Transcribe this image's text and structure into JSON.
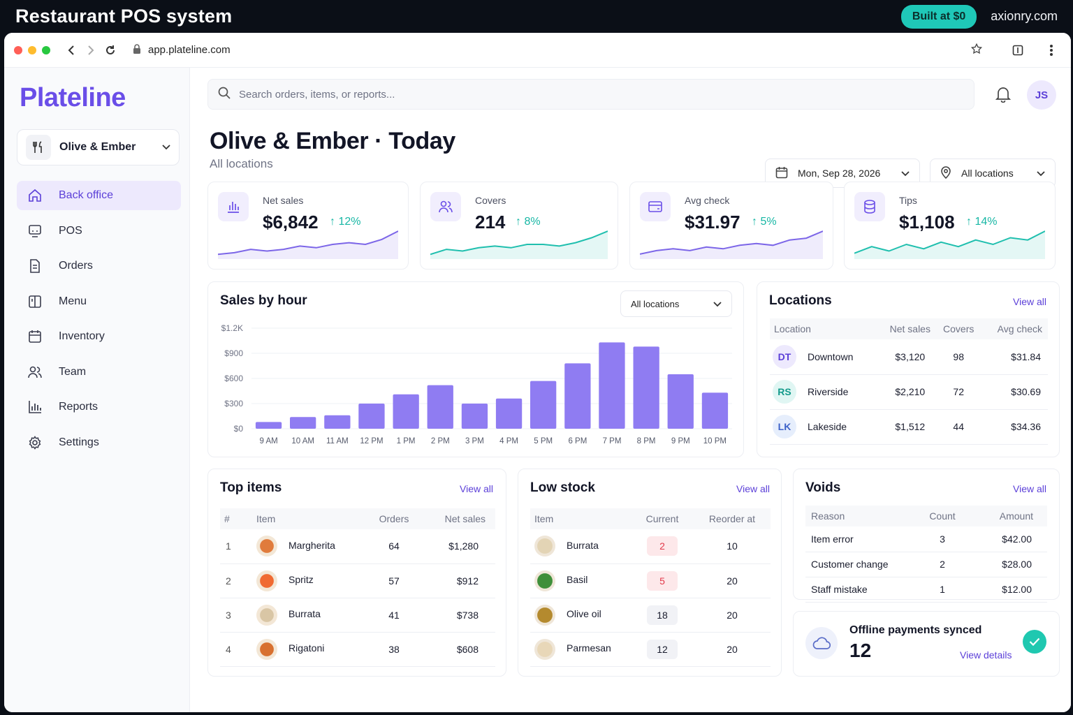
{
  "banner": {
    "title": "Restaurant POS system",
    "built": "Built at $0",
    "site": "axionry.com"
  },
  "browser": {
    "url": "app.plateline.com"
  },
  "sidebar": {
    "logo": "Plateline",
    "restaurant": "Olive & Ember",
    "items": [
      {
        "label": "Back office",
        "icon": "home-icon"
      },
      {
        "label": "POS",
        "icon": "pos-terminal-icon"
      },
      {
        "label": "Orders",
        "icon": "document-icon"
      },
      {
        "label": "Menu",
        "icon": "book-icon"
      },
      {
        "label": "Inventory",
        "icon": "calendar-box-icon"
      },
      {
        "label": "Team",
        "icon": "users-icon"
      },
      {
        "label": "Reports",
        "icon": "bar-chart-icon"
      },
      {
        "label": "Settings",
        "icon": "gear-icon"
      }
    ]
  },
  "header": {
    "search_placeholder": "Search orders, items, or reports...",
    "avatar": "JS",
    "title": "Olive & Ember · Today",
    "subtitle": "All locations",
    "date": "Mon, Sep 28, 2026",
    "location": "All locations"
  },
  "kpis": [
    {
      "label": "Net sales",
      "value": "$6,842",
      "change": "12%",
      "color": "#7c66e8",
      "spark": [
        6,
        7,
        9,
        8,
        9,
        11,
        10,
        12,
        13,
        12,
        15,
        20
      ]
    },
    {
      "label": "Covers",
      "value": "214",
      "change": "8%",
      "color": "#1fbfae",
      "spark": [
        5,
        8,
        7,
        9,
        10,
        9,
        11,
        11,
        10,
        12,
        15,
        19
      ]
    },
    {
      "label": "Avg check",
      "value": "$31.97",
      "change": "5%",
      "color": "#7c66e8",
      "spark": [
        6,
        8,
        9,
        8,
        10,
        9,
        11,
        12,
        11,
        14,
        15,
        19
      ]
    },
    {
      "label": "Tips",
      "value": "$1,108",
      "change": "14%",
      "color": "#1fbfae",
      "spark": [
        7,
        10,
        8,
        11,
        9,
        12,
        10,
        13,
        11,
        14,
        13,
        17
      ]
    }
  ],
  "sales": {
    "title": "Sales by hour",
    "filter": "All locations",
    "chart_data": {
      "type": "bar",
      "categories": [
        "9 AM",
        "10 AM",
        "11 AM",
        "12 PM",
        "1 PM",
        "2 PM",
        "3 PM",
        "4 PM",
        "5 PM",
        "6 PM",
        "7 PM",
        "8 PM",
        "9 PM",
        "10 PM"
      ],
      "values": [
        80,
        140,
        160,
        300,
        410,
        520,
        300,
        360,
        570,
        780,
        1030,
        980,
        650,
        430
      ],
      "ylim": [
        0,
        1200
      ],
      "yticks": [
        "$0",
        "$300",
        "$600",
        "$900",
        "$1.2K"
      ],
      "color": "#8f7cf2"
    }
  },
  "locations": {
    "title": "Locations",
    "view_all": "View all",
    "headers": [
      "Location",
      "Net sales",
      "Covers",
      "Avg check"
    ],
    "rows": [
      {
        "code": "DT",
        "name": "Downtown",
        "sales": "$3,120",
        "covers": "98",
        "avg": "$31.84",
        "bg": "#ede9fd",
        "fg": "#5b3fd8"
      },
      {
        "code": "RS",
        "name": "Riverside",
        "sales": "$2,210",
        "covers": "72",
        "avg": "$30.69",
        "bg": "#e0f6f3",
        "fg": "#139a8b"
      },
      {
        "code": "LK",
        "name": "Lakeside",
        "sales": "$1,512",
        "covers": "44",
        "avg": "$34.36",
        "bg": "#e6eefc",
        "fg": "#3e63c9"
      }
    ]
  },
  "top_items": {
    "title": "Top items",
    "view_all": "View all",
    "headers": [
      "#",
      "Item",
      "Orders",
      "Net sales"
    ],
    "rows": [
      {
        "n": "1",
        "name": "Margherita",
        "orders": "64",
        "sales": "$1,280",
        "color": "#e07b3c"
      },
      {
        "n": "2",
        "name": "Spritz",
        "orders": "57",
        "sales": "$912",
        "color": "#f06a32"
      },
      {
        "n": "3",
        "name": "Burrata",
        "orders": "41",
        "sales": "$738",
        "color": "#d9c6a5"
      },
      {
        "n": "4",
        "name": "Rigatoni",
        "orders": "38",
        "sales": "$608",
        "color": "#d8702f"
      }
    ]
  },
  "low_stock": {
    "title": "Low stock",
    "view_all": "View all",
    "headers": [
      "Item",
      "Current",
      "Reorder at"
    ],
    "rows": [
      {
        "name": "Burrata",
        "current": "2",
        "reorder": "10",
        "low": true,
        "color": "#e3d4b5"
      },
      {
        "name": "Basil",
        "current": "5",
        "reorder": "20",
        "low": true,
        "color": "#3f8f3a"
      },
      {
        "name": "Olive oil",
        "current": "18",
        "reorder": "20",
        "low": false,
        "color": "#b48a2e"
      },
      {
        "name": "Parmesan",
        "current": "12",
        "reorder": "20",
        "low": false,
        "color": "#e8d7b8"
      }
    ]
  },
  "voids": {
    "title": "Voids",
    "view_all": "View all",
    "headers": [
      "Reason",
      "Count",
      "Amount"
    ],
    "rows": [
      {
        "reason": "Item error",
        "count": "3",
        "amount": "$42.00"
      },
      {
        "reason": "Customer change",
        "count": "2",
        "amount": "$28.00"
      },
      {
        "reason": "Staff mistake",
        "count": "1",
        "amount": "$12.00"
      }
    ]
  },
  "offline": {
    "title": "Offline payments synced",
    "count": "12",
    "link": "View details"
  }
}
